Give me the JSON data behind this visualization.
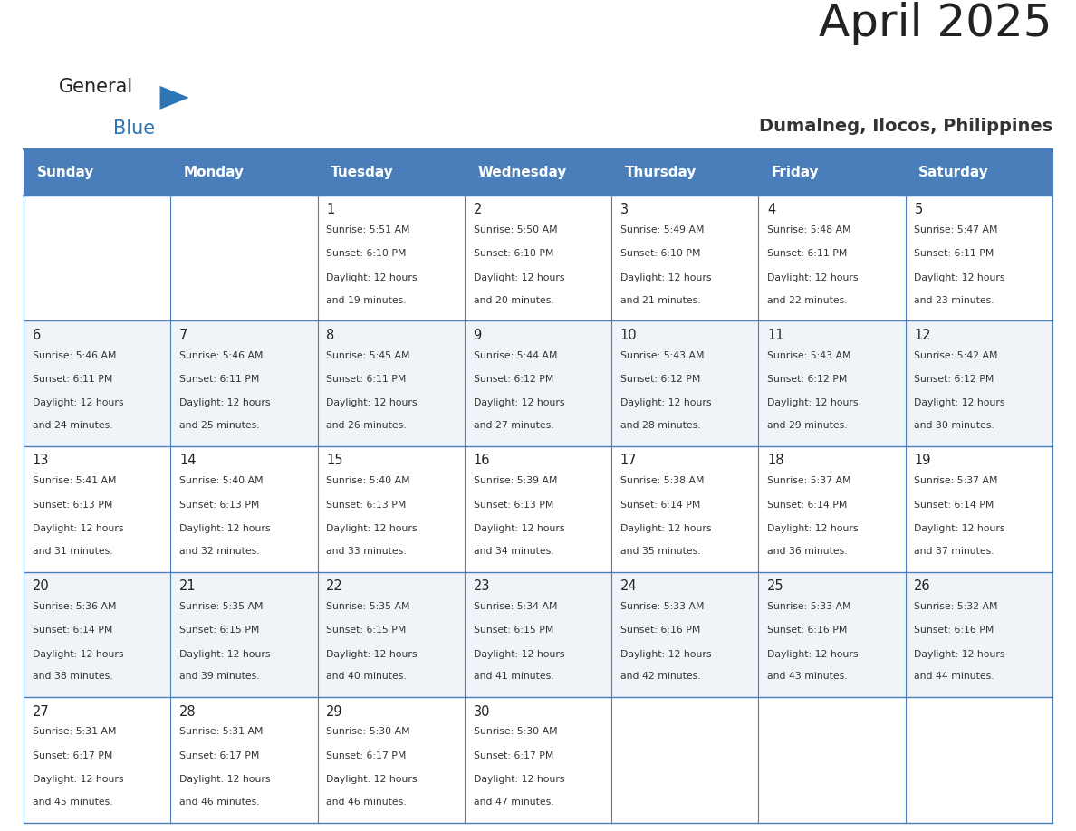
{
  "title": "April 2025",
  "subtitle": "Dumalneg, Ilocos, Philippines",
  "days_of_week": [
    "Sunday",
    "Monday",
    "Tuesday",
    "Wednesday",
    "Thursday",
    "Friday",
    "Saturday"
  ],
  "header_bg": "#4A7EBB",
  "header_text": "#FFFFFF",
  "row_bg": [
    "#FFFFFF",
    "#F0F4F8"
  ],
  "line_color": "#4A7EBB",
  "day_number_color": "#222222",
  "cell_text_color": "#333333",
  "title_color": "#222222",
  "subtitle_color": "#333333",
  "logo_general_color": "#222222",
  "logo_blue_color": "#2E75B6",
  "calendar_data": [
    [
      {
        "day": "",
        "sunrise": "",
        "sunset": "",
        "daylight": ""
      },
      {
        "day": "",
        "sunrise": "",
        "sunset": "",
        "daylight": ""
      },
      {
        "day": "1",
        "sunrise": "5:51 AM",
        "sunset": "6:10 PM",
        "daylight": "19 minutes."
      },
      {
        "day": "2",
        "sunrise": "5:50 AM",
        "sunset": "6:10 PM",
        "daylight": "20 minutes."
      },
      {
        "day": "3",
        "sunrise": "5:49 AM",
        "sunset": "6:10 PM",
        "daylight": "21 minutes."
      },
      {
        "day": "4",
        "sunrise": "5:48 AM",
        "sunset": "6:11 PM",
        "daylight": "22 minutes."
      },
      {
        "day": "5",
        "sunrise": "5:47 AM",
        "sunset": "6:11 PM",
        "daylight": "23 minutes."
      }
    ],
    [
      {
        "day": "6",
        "sunrise": "5:46 AM",
        "sunset": "6:11 PM",
        "daylight": "24 minutes."
      },
      {
        "day": "7",
        "sunrise": "5:46 AM",
        "sunset": "6:11 PM",
        "daylight": "25 minutes."
      },
      {
        "day": "8",
        "sunrise": "5:45 AM",
        "sunset": "6:11 PM",
        "daylight": "26 minutes."
      },
      {
        "day": "9",
        "sunrise": "5:44 AM",
        "sunset": "6:12 PM",
        "daylight": "27 minutes."
      },
      {
        "day": "10",
        "sunrise": "5:43 AM",
        "sunset": "6:12 PM",
        "daylight": "28 minutes."
      },
      {
        "day": "11",
        "sunrise": "5:43 AM",
        "sunset": "6:12 PM",
        "daylight": "29 minutes."
      },
      {
        "day": "12",
        "sunrise": "5:42 AM",
        "sunset": "6:12 PM",
        "daylight": "30 minutes."
      }
    ],
    [
      {
        "day": "13",
        "sunrise": "5:41 AM",
        "sunset": "6:13 PM",
        "daylight": "31 minutes."
      },
      {
        "day": "14",
        "sunrise": "5:40 AM",
        "sunset": "6:13 PM",
        "daylight": "32 minutes."
      },
      {
        "day": "15",
        "sunrise": "5:40 AM",
        "sunset": "6:13 PM",
        "daylight": "33 minutes."
      },
      {
        "day": "16",
        "sunrise": "5:39 AM",
        "sunset": "6:13 PM",
        "daylight": "34 minutes."
      },
      {
        "day": "17",
        "sunrise": "5:38 AM",
        "sunset": "6:14 PM",
        "daylight": "35 minutes."
      },
      {
        "day": "18",
        "sunrise": "5:37 AM",
        "sunset": "6:14 PM",
        "daylight": "36 minutes."
      },
      {
        "day": "19",
        "sunrise": "5:37 AM",
        "sunset": "6:14 PM",
        "daylight": "37 minutes."
      }
    ],
    [
      {
        "day": "20",
        "sunrise": "5:36 AM",
        "sunset": "6:14 PM",
        "daylight": "38 minutes."
      },
      {
        "day": "21",
        "sunrise": "5:35 AM",
        "sunset": "6:15 PM",
        "daylight": "39 minutes."
      },
      {
        "day": "22",
        "sunrise": "5:35 AM",
        "sunset": "6:15 PM",
        "daylight": "40 minutes."
      },
      {
        "day": "23",
        "sunrise": "5:34 AM",
        "sunset": "6:15 PM",
        "daylight": "41 minutes."
      },
      {
        "day": "24",
        "sunrise": "5:33 AM",
        "sunset": "6:16 PM",
        "daylight": "42 minutes."
      },
      {
        "day": "25",
        "sunrise": "5:33 AM",
        "sunset": "6:16 PM",
        "daylight": "43 minutes."
      },
      {
        "day": "26",
        "sunrise": "5:32 AM",
        "sunset": "6:16 PM",
        "daylight": "44 minutes."
      }
    ],
    [
      {
        "day": "27",
        "sunrise": "5:31 AM",
        "sunset": "6:17 PM",
        "daylight": "45 minutes."
      },
      {
        "day": "28",
        "sunrise": "5:31 AM",
        "sunset": "6:17 PM",
        "daylight": "46 minutes."
      },
      {
        "day": "29",
        "sunrise": "5:30 AM",
        "sunset": "6:17 PM",
        "daylight": "46 minutes."
      },
      {
        "day": "30",
        "sunrise": "5:30 AM",
        "sunset": "6:17 PM",
        "daylight": "47 minutes."
      },
      {
        "day": "",
        "sunrise": "",
        "sunset": "",
        "daylight": ""
      },
      {
        "day": "",
        "sunrise": "",
        "sunset": "",
        "daylight": ""
      },
      {
        "day": "",
        "sunrise": "",
        "sunset": "",
        "daylight": ""
      }
    ]
  ]
}
